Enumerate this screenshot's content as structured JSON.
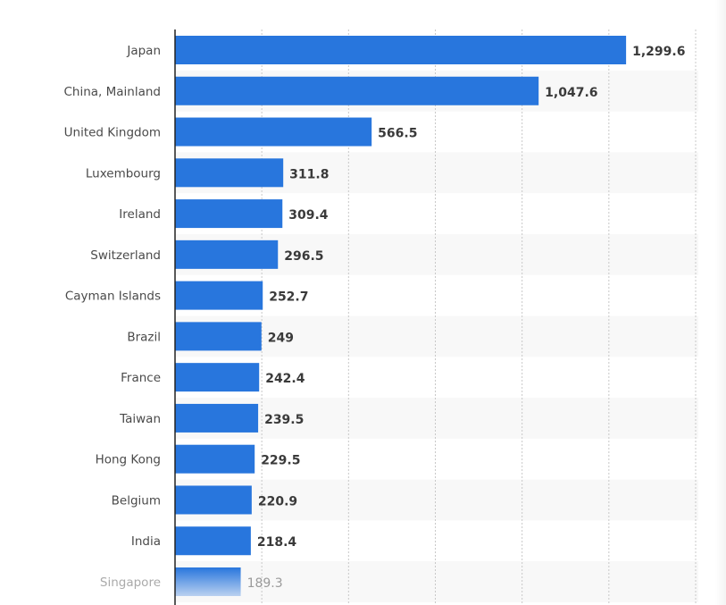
{
  "chart_data": {
    "type": "bar",
    "orientation": "horizontal",
    "title": "",
    "xlabel": "",
    "ylabel": "",
    "categories": [
      "Japan",
      "China, Mainland",
      "United Kingdom",
      "Luxembourg",
      "Ireland",
      "Switzerland",
      "Cayman Islands",
      "Brazil",
      "France",
      "Taiwan",
      "Hong Kong",
      "Belgium",
      "India",
      "Singapore"
    ],
    "values": [
      1299.6,
      1047.6,
      566.5,
      311.8,
      309.4,
      296.5,
      252.7,
      249,
      242.4,
      239.5,
      229.5,
      220.9,
      218.4,
      189.3
    ],
    "value_labels": [
      "1,299.6",
      "1,047.6",
      "566.5",
      "311.8",
      "309.4",
      "296.5",
      "252.7",
      "249",
      "242.4",
      "239.5",
      "229.5",
      "220.9",
      "218.4",
      "189.3"
    ],
    "xlim": [
      0,
      1500
    ],
    "grid_ticks": [
      250,
      500,
      750,
      1000,
      1250,
      1500
    ],
    "grid": true,
    "bar_color": "#2876dd",
    "band_color": "#f8f8f8"
  }
}
